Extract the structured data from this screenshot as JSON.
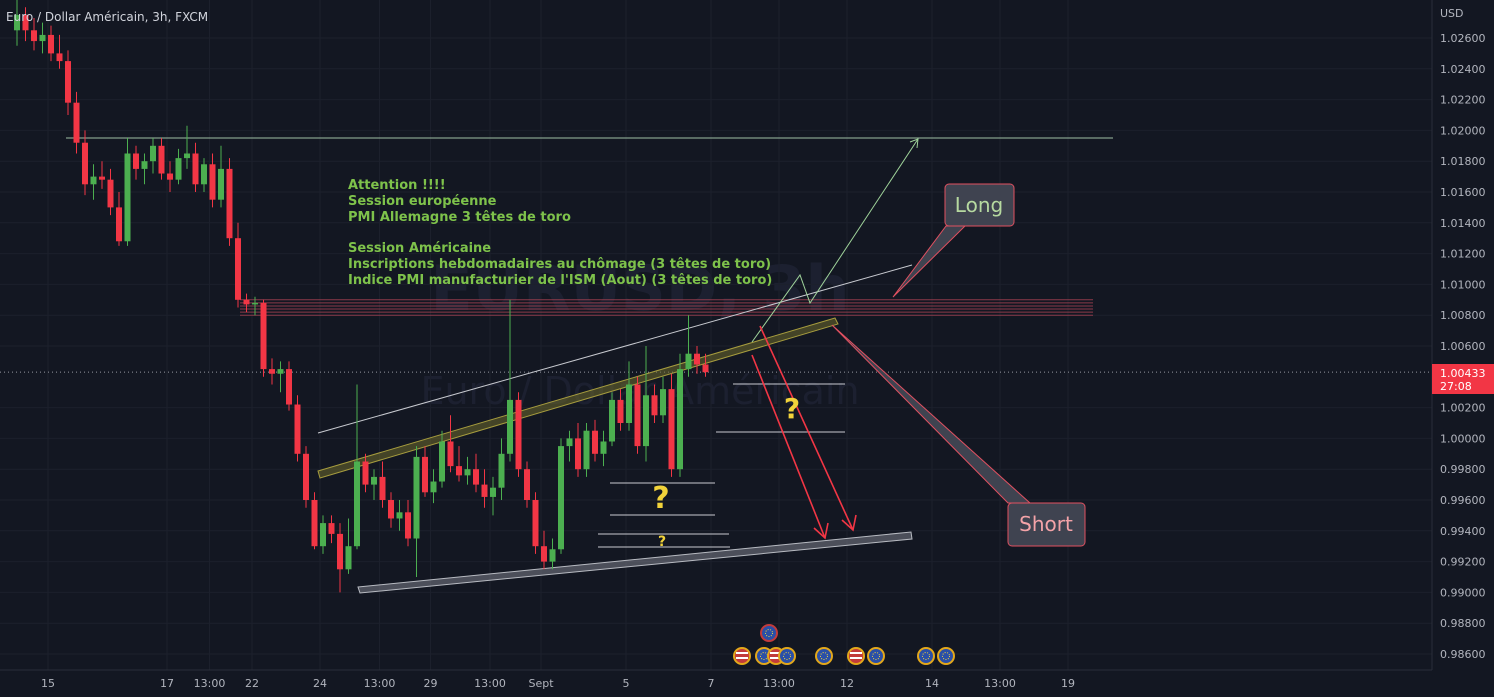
{
  "header": {
    "symbol_title": "Euro / Dollar Américain, 3h, FXCM",
    "currency": "USD"
  },
  "price_tag": {
    "price": "1.00433",
    "countdown": "27:08",
    "color": "#f23645"
  },
  "watermark": {
    "line1": "EURUSD, 3h",
    "line2": "Euro / Dollar Américain"
  },
  "notes": [
    "Attention !!!!",
    "Session européenne",
    "PMI Allemagne 3 têtes de toro",
    "",
    "Session Américaine",
    "Inscriptions hebdomadaires au chômage   (3 têtes de toro)",
    "Indice PMI manufacturier de l'ISM (Aout) (3 têtes de toro)"
  ],
  "callouts": {
    "long": "Long",
    "short": "Short"
  },
  "question_marks": [
    "?",
    "?",
    "?"
  ],
  "colors": {
    "background": "#131722",
    "bull": "#4caf50",
    "bear": "#f23645",
    "note_text": "#7ec24b",
    "long_text": "#b6d9a0",
    "short_text": "#f4a3a8",
    "question": "#f2d33a",
    "channel_yellow": "#8a8a3a"
  },
  "event_icons": [
    "flag-us-icon",
    "flag-eu-icon",
    "flag-us-icon",
    "flag-eu-icon",
    "flag-eu-icon",
    "flag-us-icon",
    "flag-eu-icon",
    "flag-eu-icon",
    "flag-eu-icon"
  ],
  "chart_data": {
    "type": "candlestick",
    "title": "Euro / Dollar Américain, 3h, FXCM",
    "ylabel": "USD",
    "ylim": [
      0.9852,
      1.0282
    ],
    "y_ticks": [
      "1.02600",
      "1.02400",
      "1.02200",
      "1.02000",
      "1.01800",
      "1.01600",
      "1.01400",
      "1.01200",
      "1.01000",
      "1.00800",
      "1.00600",
      "1.00200",
      "1.00000",
      "0.99800",
      "0.99600",
      "0.99400",
      "0.99200",
      "0.99000",
      "0.98800",
      "0.98600"
    ],
    "x_ticks": [
      "15",
      "17",
      "13:00",
      "22",
      "24",
      "13:00",
      "29",
      "13:00",
      "Sept",
      "5",
      "7",
      "13:00",
      "12",
      "14",
      "13:00",
      "19"
    ],
    "x_tick_positions": [
      0,
      14,
      19,
      24,
      32,
      39,
      45,
      52,
      58,
      68,
      78,
      86,
      94,
      104,
      112,
      120
    ],
    "candles": [
      [
        1.0265,
        1.029,
        1.0255,
        1.0275
      ],
      [
        1.0275,
        1.028,
        1.0258,
        1.0265
      ],
      [
        1.0265,
        1.0273,
        1.0252,
        1.0258
      ],
      [
        1.0258,
        1.027,
        1.025,
        1.0262
      ],
      [
        1.0262,
        1.0268,
        1.0245,
        1.025
      ],
      [
        1.025,
        1.0262,
        1.024,
        1.0245
      ],
      [
        1.0245,
        1.0252,
        1.021,
        1.0218
      ],
      [
        1.0218,
        1.0225,
        1.0185,
        1.0192
      ],
      [
        1.0192,
        1.02,
        1.0158,
        1.0165
      ],
      [
        1.0165,
        1.0178,
        1.0155,
        1.017
      ],
      [
        1.017,
        1.018,
        1.0162,
        1.0168
      ],
      [
        1.0168,
        1.0175,
        1.0145,
        1.015
      ],
      [
        1.015,
        1.016,
        1.0125,
        1.0128
      ],
      [
        1.0128,
        1.0195,
        1.0125,
        1.0185
      ],
      [
        1.0185,
        1.019,
        1.0168,
        1.0175
      ],
      [
        1.0175,
        1.0185,
        1.0165,
        1.018
      ],
      [
        1.018,
        1.0195,
        1.0172,
        1.019
      ],
      [
        1.019,
        1.0195,
        1.0168,
        1.0172
      ],
      [
        1.0172,
        1.018,
        1.016,
        1.0168
      ],
      [
        1.0168,
        1.0188,
        1.0165,
        1.0182
      ],
      [
        1.0182,
        1.0203,
        1.0175,
        1.0185
      ],
      [
        1.0185,
        1.0192,
        1.016,
        1.0165
      ],
      [
        1.0165,
        1.0182,
        1.016,
        1.0178
      ],
      [
        1.0178,
        1.0185,
        1.015,
        1.0155
      ],
      [
        1.0155,
        1.019,
        1.015,
        1.0175
      ],
      [
        1.0175,
        1.0182,
        1.0125,
        1.013
      ],
      [
        1.013,
        1.014,
        1.0085,
        1.009
      ],
      [
        1.009,
        1.0094,
        1.0082,
        1.0087
      ],
      [
        1.0087,
        1.0092,
        1.008,
        1.0088
      ],
      [
        1.0088,
        1.009,
        1.004,
        1.0045
      ],
      [
        1.0045,
        1.0052,
        1.0035,
        1.0042
      ],
      [
        1.0042,
        1.005,
        1.003,
        1.0045
      ],
      [
        1.0045,
        1.005,
        1.0018,
        1.0022
      ],
      [
        1.0022,
        1.0028,
        0.9985,
        0.999
      ],
      [
        0.999,
        0.9995,
        0.9955,
        0.996
      ],
      [
        0.996,
        0.9965,
        0.9928,
        0.993
      ],
      [
        0.993,
        0.995,
        0.9925,
        0.9945
      ],
      [
        0.9945,
        0.995,
        0.9932,
        0.9938
      ],
      [
        0.9938,
        0.9945,
        0.99,
        0.9915
      ],
      [
        0.9915,
        0.9948,
        0.9912,
        0.993
      ],
      [
        0.993,
        1.0035,
        0.9928,
        0.9985
      ],
      [
        0.9985,
        0.999,
        0.9965,
        0.997
      ],
      [
        0.997,
        0.998,
        0.996,
        0.9975
      ],
      [
        0.9975,
        0.9985,
        0.9955,
        0.996
      ],
      [
        0.996,
        0.9965,
        0.9942,
        0.9948
      ],
      [
        0.9948,
        0.996,
        0.994,
        0.9952
      ],
      [
        0.9952,
        0.996,
        0.993,
        0.9935
      ],
      [
        0.9935,
        0.9995,
        0.991,
        0.9988
      ],
      [
        0.9988,
        0.9995,
        0.9962,
        0.9965
      ],
      [
        0.9965,
        0.998,
        0.9958,
        0.9972
      ],
      [
        0.9972,
        1.0005,
        0.9968,
        0.9998
      ],
      [
        0.9998,
        1.0015,
        0.9978,
        0.9982
      ],
      [
        0.9982,
        0.9995,
        0.9972,
        0.9976
      ],
      [
        0.9976,
        0.9988,
        0.997,
        0.998
      ],
      [
        0.998,
        0.999,
        0.9965,
        0.997
      ],
      [
        0.997,
        0.998,
        0.9955,
        0.9962
      ],
      [
        0.9962,
        0.9975,
        0.995,
        0.9968
      ],
      [
        0.9968,
        1.0,
        0.996,
        0.999
      ],
      [
        0.999,
        1.009,
        0.9985,
        1.0025
      ],
      [
        1.0025,
        1.003,
        0.9975,
        0.998
      ],
      [
        0.998,
        0.9985,
        0.9955,
        0.996
      ],
      [
        0.996,
        0.9965,
        0.9925,
        0.993
      ],
      [
        0.993,
        0.994,
        0.9915,
        0.992
      ],
      [
        0.992,
        0.9935,
        0.9915,
        0.9928
      ],
      [
        0.9928,
        1.0,
        0.9925,
        0.9995
      ],
      [
        0.9995,
        1.0005,
        0.9985,
        1.0
      ],
      [
        1.0,
        1.001,
        0.9975,
        0.998
      ],
      [
        0.998,
        1.001,
        0.9975,
        1.0005
      ],
      [
        1.0005,
        1.0012,
        0.9985,
        0.999
      ],
      [
        0.999,
        1.0005,
        0.9982,
        0.9998
      ],
      [
        0.9998,
        1.003,
        0.9995,
        1.0025
      ],
      [
        1.0025,
        1.0032,
        1.0005,
        1.001
      ],
      [
        1.001,
        1.005,
        1.0005,
        1.0035
      ],
      [
        1.0035,
        1.004,
        0.999,
        0.9995
      ],
      [
        0.9995,
        1.006,
        0.9985,
        1.0028
      ],
      [
        1.0028,
        1.0035,
        1.001,
        1.0015
      ],
      [
        1.0015,
        1.004,
        1.001,
        1.0032
      ],
      [
        1.0032,
        1.0042,
        0.9975,
        0.998
      ],
      [
        0.998,
        1.0055,
        0.9975,
        1.0045
      ],
      [
        1.0045,
        1.008,
        1.004,
        1.0055
      ],
      [
        1.0055,
        1.006,
        1.0042,
        1.0048
      ],
      [
        1.0048,
        1.0055,
        1.004,
        1.0043
      ]
    ]
  }
}
